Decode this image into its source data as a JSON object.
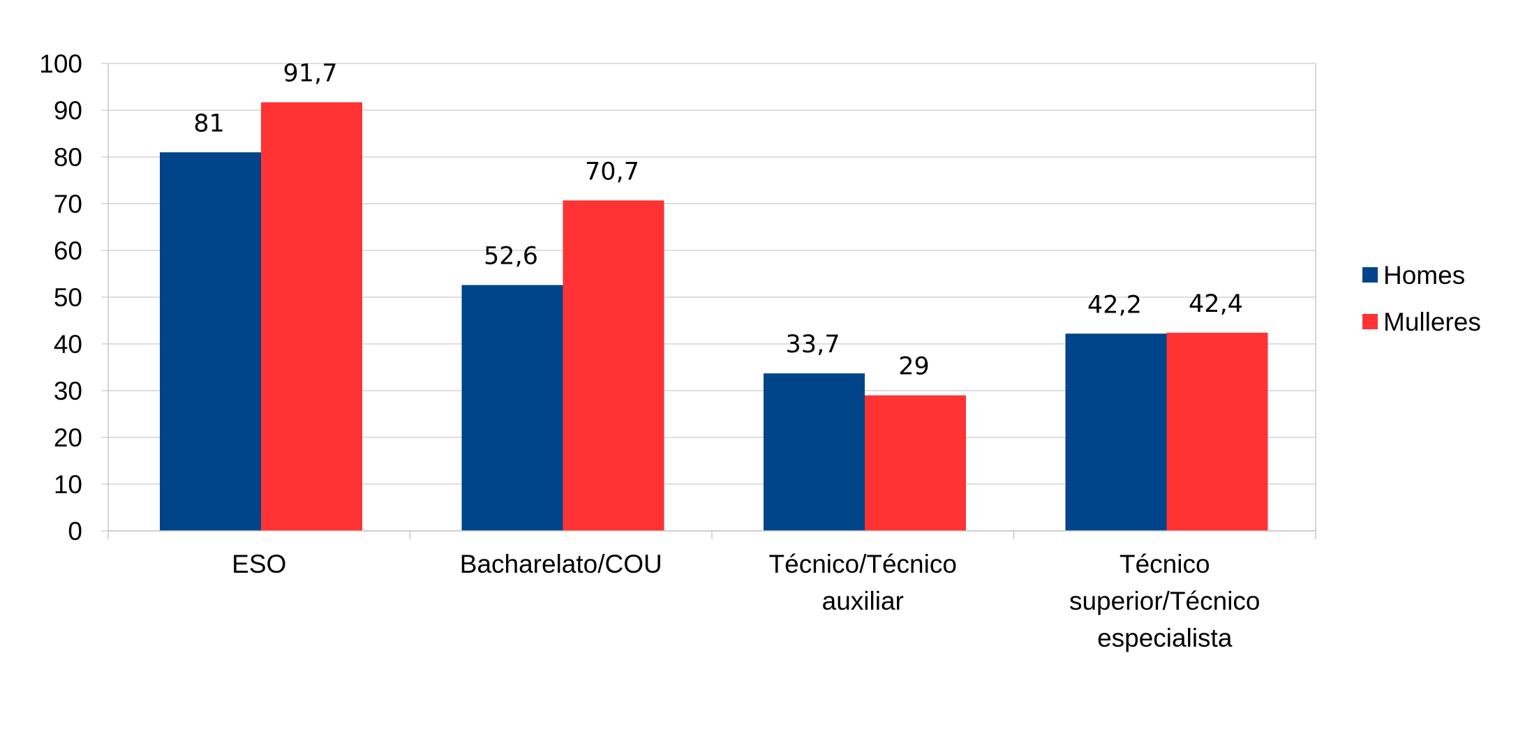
{
  "chart_data": {
    "type": "bar",
    "title": "",
    "xlabel": "",
    "ylabel": "",
    "ylim": [
      0,
      100
    ],
    "yticks": [
      0,
      10,
      20,
      30,
      40,
      50,
      60,
      70,
      80,
      90,
      100
    ],
    "grid": true,
    "legend_position": "right",
    "categories": [
      [
        "ESO"
      ],
      [
        "Bacharelato/COU"
      ],
      [
        "Técnico/Técnico",
        "auxiliar"
      ],
      [
        "Técnico",
        "superior/Técnico",
        "especialista"
      ]
    ],
    "series": [
      {
        "name": "Homes",
        "color": "#00448a",
        "values": [
          81,
          52.6,
          33.7,
          42.2
        ],
        "labels": [
          "81",
          "52,6",
          "33,7",
          "42,2"
        ]
      },
      {
        "name": "Mulleres",
        "color": "#ff3334",
        "values": [
          91.7,
          70.7,
          29,
          42.4
        ],
        "labels": [
          "91,7",
          "70,7",
          "29",
          "42,4"
        ]
      }
    ]
  }
}
